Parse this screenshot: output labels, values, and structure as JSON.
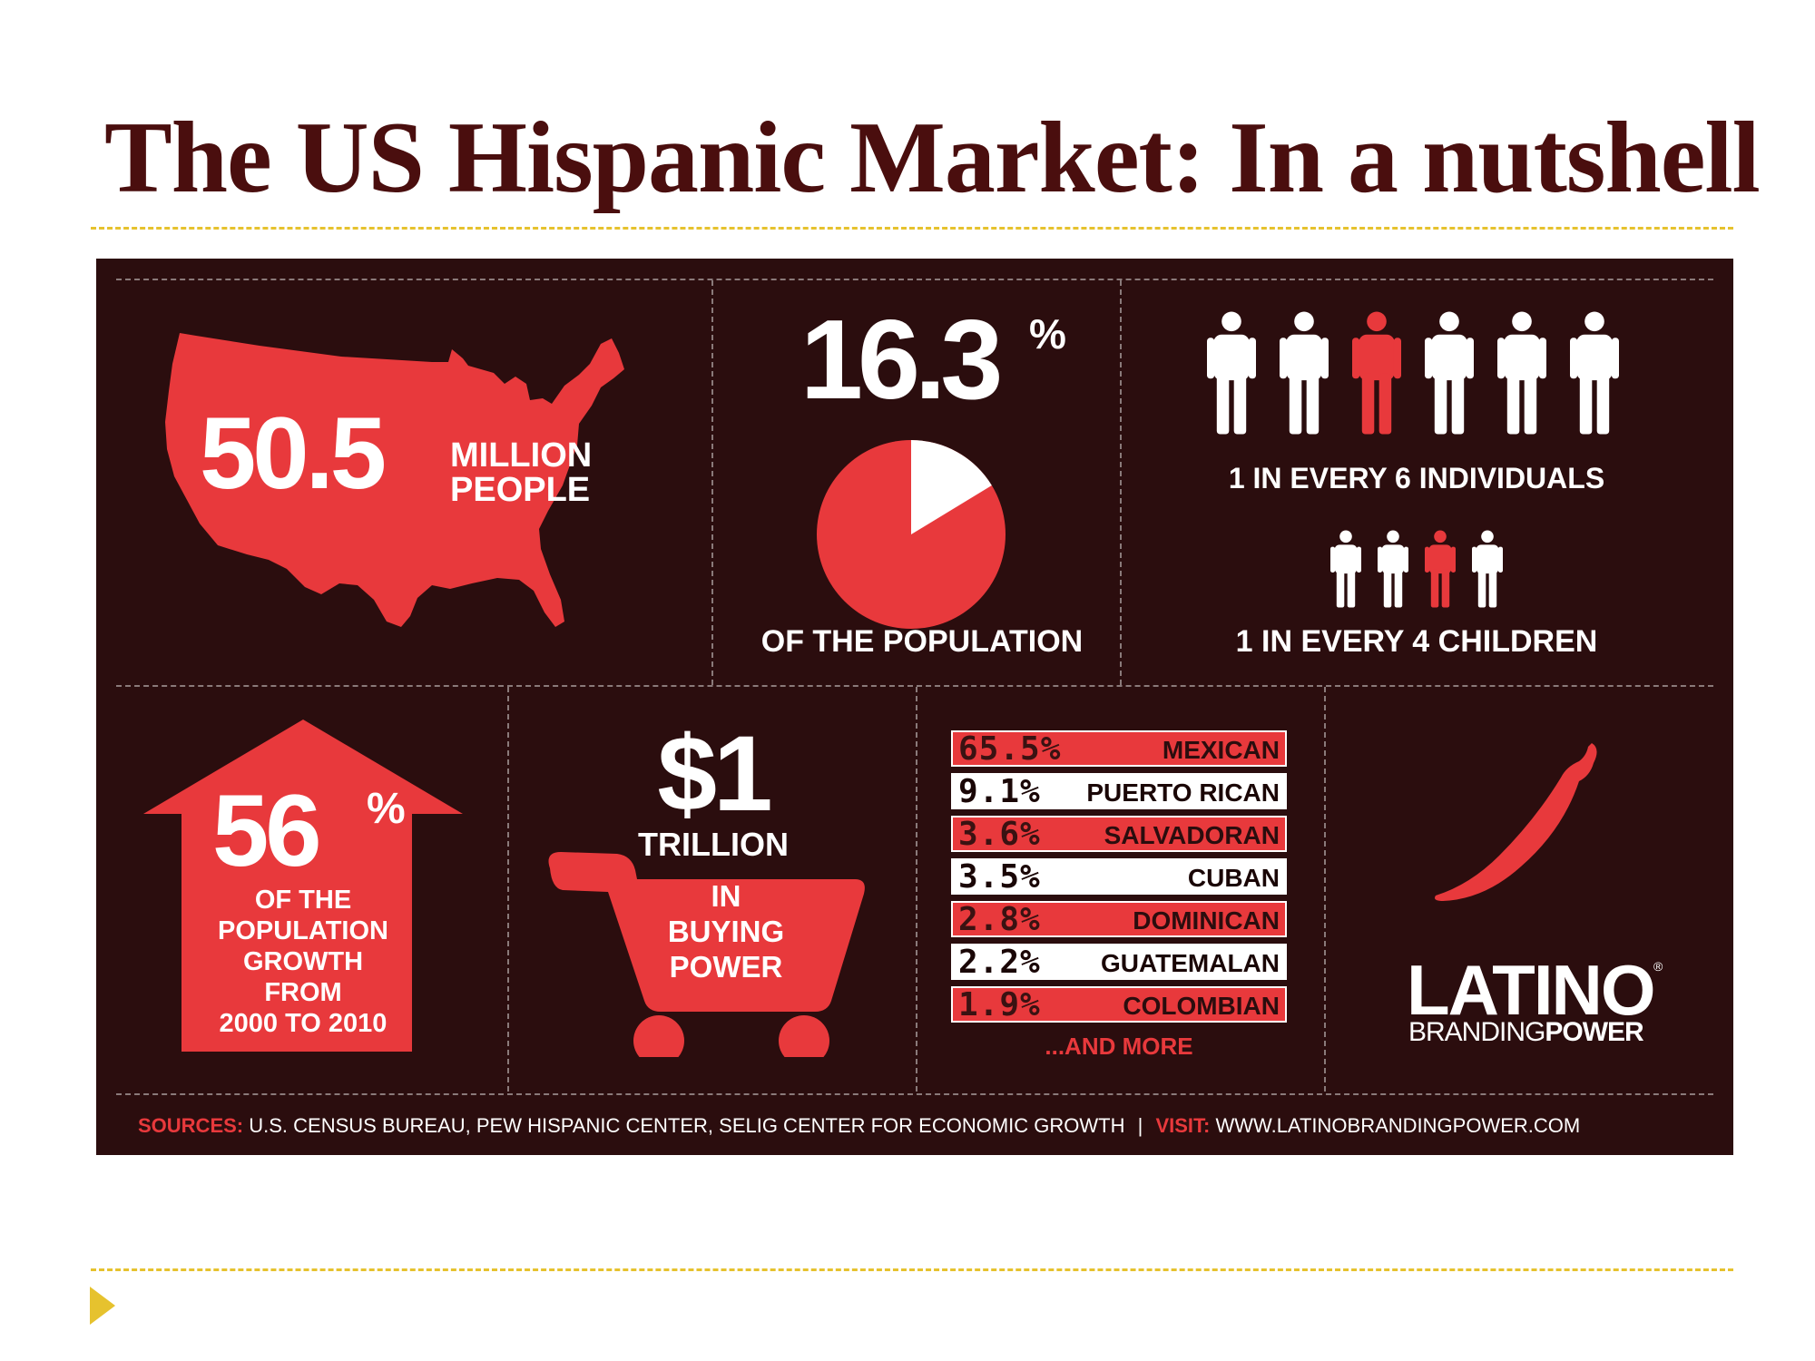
{
  "title": "The US Hispanic Market: In a nutshell",
  "colors": {
    "panel_bg": "#2b0d0e",
    "accent_red": "#e8393c",
    "title_color": "#4a0e0e",
    "gold": "#e6c22e"
  },
  "population": {
    "number": "50.5",
    "unit_line1": "MILLION",
    "unit_line2": "PEOPLE",
    "icon": "usa-map-icon"
  },
  "share": {
    "number": "16.3",
    "percent_sign": "%",
    "caption": "OF THE POPULATION",
    "fraction": 0.163
  },
  "ratio": {
    "individuals": {
      "caption": "1 IN EVERY 6 INDIVIDUALS",
      "total": 6,
      "highlighted_index": 3
    },
    "children": {
      "caption": "1 IN EVERY 4 CHILDREN",
      "total": 4,
      "highlighted_index": 3
    }
  },
  "growth": {
    "number": "56",
    "percent_sign": "%",
    "line1": "OF THE",
    "line2": "POPULATION",
    "line3": "GROWTH",
    "line4": "FROM",
    "line5": "2000 TO 2010",
    "icon": "up-arrow-icon"
  },
  "buying": {
    "amount": "$1",
    "unit": "TRILLION",
    "line1": "IN",
    "line2": "BUYING",
    "line3": "POWER",
    "icon": "shopping-cart-icon"
  },
  "origins": {
    "rows": [
      {
        "pct": "65.5%",
        "name": "MEXICAN"
      },
      {
        "pct": "9.1%",
        "name": "PUERTO RICAN"
      },
      {
        "pct": "3.6%",
        "name": "SALVADORAN"
      },
      {
        "pct": "3.5%",
        "name": "CUBAN"
      },
      {
        "pct": "2.8%",
        "name": "DOMINICAN"
      },
      {
        "pct": "2.2%",
        "name": "GUATEMALAN"
      },
      {
        "pct": "1.9%",
        "name": "COLOMBIAN"
      }
    ],
    "more": "...AND MORE"
  },
  "brand": {
    "name": "LATINO",
    "reg": "®",
    "tag_light": "BRANDING",
    "tag_bold": "POWER",
    "icon": "chili-pepper-icon"
  },
  "footer": {
    "sources_label": "SOURCES:",
    "sources_text": "U.S. CENSUS BUREAU, PEW HISPANIC CENTER, SELIG CENTER FOR ECONOMIC GROWTH",
    "separator": "|",
    "visit_label": "VISIT:",
    "visit_text": "WWW.LATINOBRANDINGPOWER.COM"
  },
  "nav": {
    "icon": "triangle-bullet-icon"
  }
}
